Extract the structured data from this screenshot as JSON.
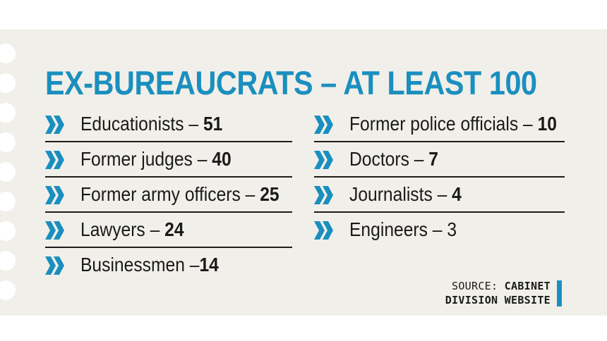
{
  "title": "EX-BUREAUCRATS – AT LEAST 100",
  "left_items": [
    {
      "label": "Educationists",
      "sep": " – ",
      "count": "51"
    },
    {
      "label": "Former judges",
      "sep": " – ",
      "count": "40"
    },
    {
      "label": "Former army officers",
      "sep": " – ",
      "count": "25"
    },
    {
      "label": "Lawyers",
      "sep": " – ",
      "count": "24"
    },
    {
      "label": "Businessmen",
      "sep": " –",
      "count": "14"
    }
  ],
  "right_items": [
    {
      "label": "Former police officials",
      "sep": " – ",
      "count": "10"
    },
    {
      "label": "Doctors",
      "sep": " – ",
      "count": "7"
    },
    {
      "label": "Journalists",
      "sep": " – ",
      "count": "4"
    },
    {
      "label": "Engineers",
      "sep": " – ",
      "count": "3"
    }
  ],
  "source": {
    "prefix": "SOURCE:",
    "line1_bold": "CABINET",
    "line2_bold": "DIVISION WEBSITE"
  },
  "colors": {
    "accent": "#1a8fbf",
    "background": "#f1efe9",
    "text": "#1a1a1a"
  },
  "icons": {
    "bullet": "double-chevron-right-icon"
  }
}
